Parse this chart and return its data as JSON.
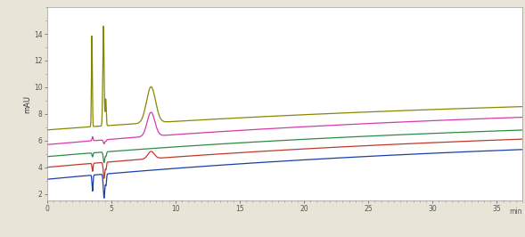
{
  "ylabel": "mAU",
  "xlabel": "min",
  "xlim": [
    0,
    37
  ],
  "ylim": [
    1.5,
    16
  ],
  "yticks": [
    2,
    4,
    6,
    8,
    10,
    12,
    14
  ],
  "xticks": [
    0,
    5,
    10,
    15,
    20,
    25,
    30,
    35
  ],
  "background_color": "#e8e4d8",
  "plot_bg_color": "#ffffff",
  "line_configs": [
    {
      "color": "#1a3faa",
      "b_start": 3.1,
      "b_end": 6.8,
      "tau": 40,
      "peaks": [
        {
          "mu": 3.55,
          "sigma": 0.04,
          "amp": -1.2
        },
        {
          "mu": 4.45,
          "sigma": 0.06,
          "amp": -1.8
        },
        {
          "mu": 4.6,
          "sigma": 0.04,
          "amp": -0.8
        }
      ]
    },
    {
      "color": "#c0392b",
      "b_start": 4.0,
      "b_end": 7.5,
      "tau": 40,
      "peaks": [
        {
          "mu": 3.55,
          "sigma": 0.04,
          "amp": -0.6
        },
        {
          "mu": 4.45,
          "sigma": 0.06,
          "amp": -1.2
        },
        {
          "mu": 4.6,
          "sigma": 0.04,
          "amp": -0.5
        },
        {
          "mu": 8.1,
          "sigma": 0.25,
          "amp": 0.55
        }
      ]
    },
    {
      "color": "#2e8b44",
      "b_start": 4.8,
      "b_end": 8.1,
      "tau": 40,
      "peaks": [
        {
          "mu": 3.55,
          "sigma": 0.04,
          "amp": -0.3
        },
        {
          "mu": 4.45,
          "sigma": 0.06,
          "amp": -0.8
        },
        {
          "mu": 4.6,
          "sigma": 0.04,
          "amp": -0.3
        }
      ]
    },
    {
      "color": "#d63aaa",
      "b_start": 5.7,
      "b_end": 9.1,
      "tau": 40,
      "peaks": [
        {
          "mu": 3.55,
          "sigma": 0.04,
          "amp": 0.3
        },
        {
          "mu": 4.45,
          "sigma": 0.06,
          "amp": -0.3
        },
        {
          "mu": 4.6,
          "sigma": 0.04,
          "amp": -0.1
        },
        {
          "mu": 8.1,
          "sigma": 0.3,
          "amp": 1.8
        }
      ]
    },
    {
      "color": "#888800",
      "b_start": 6.8,
      "b_end": 9.7,
      "tau": 40,
      "peaks": [
        {
          "mu": 3.5,
          "sigma": 0.035,
          "amp": 6.8
        },
        {
          "mu": 4.4,
          "sigma": 0.05,
          "amp": 7.5
        },
        {
          "mu": 4.58,
          "sigma": 0.04,
          "amp": 2.0
        },
        {
          "mu": 8.1,
          "sigma": 0.35,
          "amp": 2.7
        }
      ]
    }
  ],
  "linewidth": 0.9
}
